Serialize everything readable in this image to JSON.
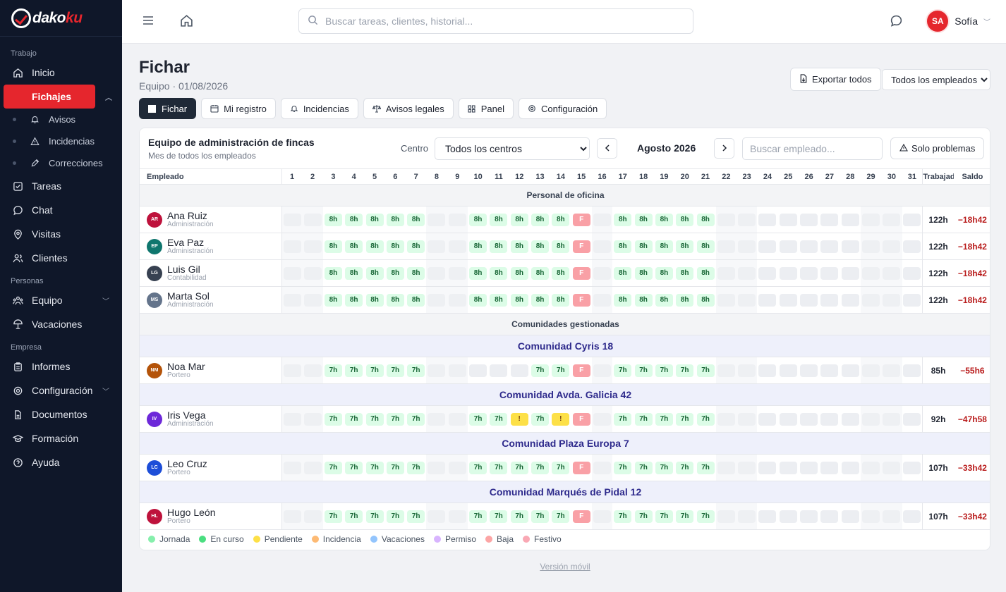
{
  "brand": {
    "name_a": "dako",
    "name_b": "ku"
  },
  "sidebar": {
    "sections": [
      {
        "label": "Trabajo",
        "key": "trabajo"
      },
      {
        "label": "Personas",
        "key": "personas"
      },
      {
        "label": "Empresa",
        "key": "empresa"
      }
    ],
    "items": {
      "inicio": "Inicio",
      "fichajes": "Fichajes",
      "avisos": "Avisos",
      "incidencias": "Incidencias",
      "correcciones": "Correcciones",
      "tareas": "Tareas",
      "chat": "Chat",
      "visitas": "Visitas",
      "clientes": "Clientes",
      "equipo": "Equipo",
      "vacaciones": "Vacaciones",
      "informes": "Informes",
      "configuracion": "Configuración",
      "documentos": "Documentos",
      "formacion": "Formación",
      "ayuda": "Ayuda"
    }
  },
  "topbar": {
    "search_placeholder": "Buscar tareas, clientes, historial...",
    "user_initials": "SA",
    "user_name": "Sofía"
  },
  "page": {
    "title": "Fichar",
    "subtitle": "Equipo · 01/08/2026",
    "export_label": "Exportar todos",
    "employee_filter": "Todos los empleados"
  },
  "tabs": [
    {
      "label": "Fichar",
      "icon": "square-icon"
    },
    {
      "label": "Mi registro",
      "icon": "calendar-icon"
    },
    {
      "label": "Incidencias",
      "icon": "bell-icon"
    },
    {
      "label": "Avisos legales",
      "icon": "scale-icon"
    },
    {
      "label": "Panel",
      "icon": "grid-icon"
    },
    {
      "label": "Configuración",
      "icon": "gear-icon"
    }
  ],
  "card": {
    "title": "Equipo de administración de fincas",
    "subtitle": "Mes de todos los empleados",
    "centro_label": "Centro",
    "centro_value": "Todos los centros",
    "month": "Agosto 2026",
    "search_placeholder": "Buscar empleado...",
    "problems_label": "Solo problemas"
  },
  "grid": {
    "emp_header": "Empleado",
    "worked_header": "Trabajado",
    "balance_header": "Saldo",
    "days": [
      "1",
      "2",
      "3",
      "4",
      "5",
      "6",
      "7",
      "8",
      "9",
      "10",
      "11",
      "12",
      "13",
      "14",
      "15",
      "16",
      "17",
      "18",
      "19",
      "20",
      "21",
      "22",
      "23",
      "24",
      "25",
      "26",
      "27",
      "28",
      "29",
      "30",
      "31"
    ],
    "weekend_days": [
      1,
      2,
      8,
      9,
      16,
      22,
      23,
      29,
      30
    ]
  },
  "groups": [
    {
      "type": "section",
      "label": "Personal de oficina"
    },
    {
      "type": "emp",
      "initials": "AR",
      "color": "#be123c",
      "name": "Ana Ruiz",
      "role": "Administración",
      "pattern": "office",
      "worked": "122h",
      "balance": "−18h42"
    },
    {
      "type": "emp",
      "initials": "EP",
      "color": "#0f766e",
      "name": "Eva Paz",
      "role": "Administración",
      "pattern": "office",
      "worked": "122h",
      "balance": "−18h42"
    },
    {
      "type": "emp",
      "initials": "LG",
      "color": "#374151",
      "name": "Luis Gil",
      "role": "Contabilidad",
      "pattern": "office",
      "worked": "122h",
      "balance": "−18h42"
    },
    {
      "type": "emp",
      "initials": "MS",
      "color": "#64748b",
      "name": "Marta Sol",
      "role": "Administración",
      "pattern": "office",
      "worked": "122h",
      "balance": "−18h42"
    },
    {
      "type": "section",
      "label": "Comunidades gestionadas"
    },
    {
      "type": "comm",
      "label": "Comunidad Cyris 18"
    },
    {
      "type": "emp",
      "initials": "NM",
      "color": "#b45309",
      "name": "Noa Mar",
      "role": "Portero",
      "pattern": "noa",
      "worked": "85h",
      "balance": "−55h6"
    },
    {
      "type": "comm",
      "label": "Comunidad Avda. Galicia 42"
    },
    {
      "type": "emp",
      "initials": "IV",
      "color": "#6d28d9",
      "name": "Iris Vega",
      "role": "Administración",
      "pattern": "iris",
      "worked": "92h",
      "balance": "−47h58"
    },
    {
      "type": "comm",
      "label": "Comunidad Plaza Europa 7"
    },
    {
      "type": "emp",
      "initials": "LC",
      "color": "#1d4ed8",
      "name": "Leo Cruz",
      "role": "Portero",
      "pattern": "porter",
      "worked": "107h",
      "balance": "−33h42"
    },
    {
      "type": "comm",
      "label": "Comunidad Marqués de Pidal 12"
    },
    {
      "type": "emp",
      "initials": "HL",
      "color": "#be123c",
      "name": "Hugo León",
      "role": "Portero",
      "pattern": "porter",
      "worked": "107h",
      "balance": "−33h42"
    }
  ],
  "patterns": {
    "office": [
      "",
      "",
      "8h",
      "8h",
      "8h",
      "8h",
      "8h",
      "",
      "",
      "8h",
      "8h",
      "8h",
      "8h",
      "8h",
      "F",
      "",
      "8h",
      "8h",
      "8h",
      "8h",
      "8h",
      "",
      "",
      "",
      "",
      "",
      "",
      "",
      "",
      "",
      ""
    ],
    "noa": [
      "",
      "",
      "7h",
      "7h",
      "7h",
      "7h",
      "7h",
      "",
      "",
      "",
      "",
      "",
      "7h",
      "7h",
      "F",
      "",
      "7h",
      "7h",
      "7h",
      "7h",
      "7h",
      "",
      "",
      "",
      "",
      "",
      "",
      "",
      "",
      "",
      ""
    ],
    "iris": [
      "",
      "",
      "7h",
      "7h",
      "7h",
      "7h",
      "7h",
      "",
      "",
      "7h",
      "7h",
      "!",
      "7h",
      "!",
      "F",
      "",
      "7h",
      "7h",
      "7h",
      "7h",
      "7h",
      "",
      "",
      "",
      "",
      "",
      "",
      "",
      "",
      "",
      ""
    ],
    "porter": [
      "",
      "",
      "7h",
      "7h",
      "7h",
      "7h",
      "7h",
      "",
      "",
      "7h",
      "7h",
      "7h",
      "7h",
      "7h",
      "F",
      "",
      "7h",
      "7h",
      "7h",
      "7h",
      "7h",
      "",
      "",
      "",
      "",
      "",
      "",
      "",
      "",
      "",
      ""
    ]
  },
  "legend": [
    {
      "label": "Jornada",
      "color": "#86efac"
    },
    {
      "label": "En curso",
      "color": "#4ade80"
    },
    {
      "label": "Pendiente",
      "color": "#fde047"
    },
    {
      "label": "Incidencia",
      "color": "#fdba74"
    },
    {
      "label": "Vacaciones",
      "color": "#93c5fd"
    },
    {
      "label": "Permiso",
      "color": "#d8b4fe"
    },
    {
      "label": "Baja",
      "color": "#fca5a5"
    },
    {
      "label": "Festivo",
      "color": "#f9a8b4"
    }
  ],
  "footer": {
    "mobile_label": "Versión móvil"
  }
}
